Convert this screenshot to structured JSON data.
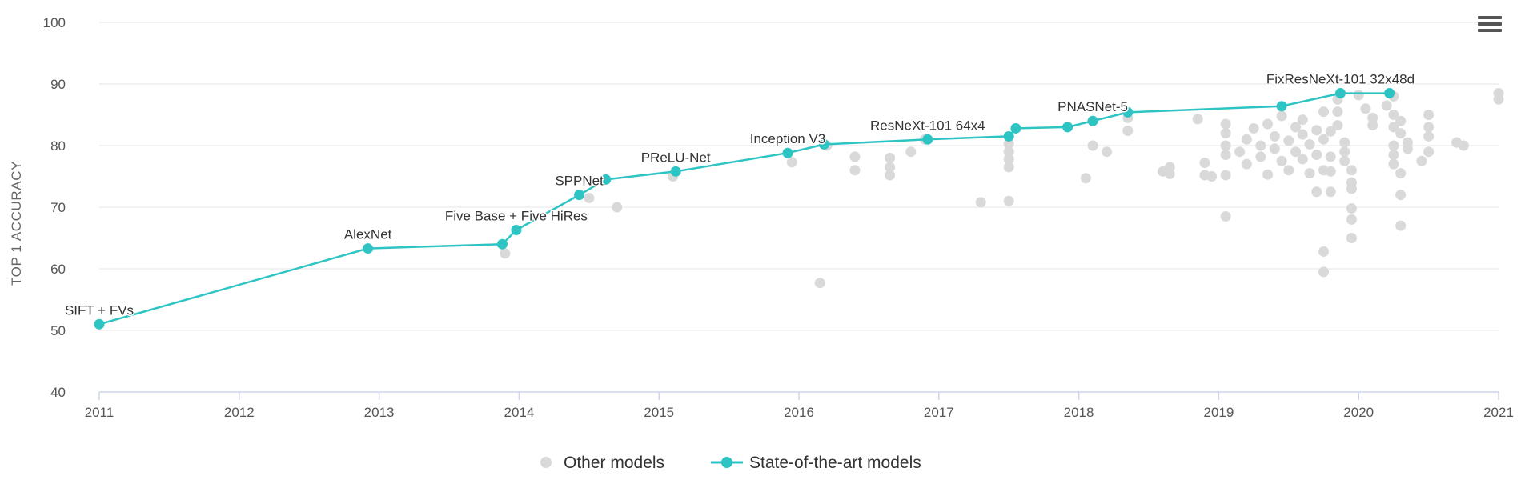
{
  "colors": {
    "sota": "#2ec4c4",
    "other": "#d9d9d9",
    "grid": "#e6e6e6",
    "axis": "#ccd6eb",
    "menu": "#555555"
  },
  "menu": {
    "icon": "hamburger-menu-icon"
  },
  "chart_data": {
    "type": "scatter",
    "ylabel": "TOP 1 ACCURACY",
    "xlabel": "",
    "xlim": [
      2011,
      2021
    ],
    "ylim": [
      40,
      100
    ],
    "x_ticks": [
      "2011",
      "2012",
      "2013",
      "2014",
      "2015",
      "2016",
      "2017",
      "2018",
      "2019",
      "2020",
      "2021"
    ],
    "y_ticks": [
      "40",
      "50",
      "60",
      "70",
      "80",
      "90",
      "100"
    ],
    "grid": true,
    "legend_position": "bottom-center",
    "series": [
      {
        "name": "Other models",
        "kind": "scatter",
        "points": [
          [
            2013.9,
            62.5
          ],
          [
            2014.5,
            71.5
          ],
          [
            2014.7,
            70.0
          ],
          [
            2015.1,
            75.0
          ],
          [
            2015.95,
            77.3
          ],
          [
            2016.15,
            57.7
          ],
          [
            2016.2,
            80.0
          ],
          [
            2016.4,
            78.2
          ],
          [
            2016.4,
            76.0
          ],
          [
            2016.65,
            78.0
          ],
          [
            2016.65,
            76.5
          ],
          [
            2016.65,
            75.2
          ],
          [
            2016.8,
            79.0
          ],
          [
            2016.9,
            81.0
          ],
          [
            2017.3,
            70.8
          ],
          [
            2017.5,
            71.0
          ],
          [
            2017.5,
            76.5
          ],
          [
            2017.5,
            77.8
          ],
          [
            2017.5,
            79.0
          ],
          [
            2017.5,
            80.3
          ],
          [
            2018.05,
            74.7
          ],
          [
            2018.1,
            80.0
          ],
          [
            2018.2,
            79.0
          ],
          [
            2018.35,
            82.4
          ],
          [
            2018.35,
            84.5
          ],
          [
            2018.6,
            75.8
          ],
          [
            2018.65,
            76.5
          ],
          [
            2018.65,
            75.4
          ],
          [
            2018.85,
            84.3
          ],
          [
            2018.9,
            77.2
          ],
          [
            2018.9,
            75.2
          ],
          [
            2018.95,
            75.0
          ],
          [
            2019.05,
            68.5
          ],
          [
            2019.05,
            75.2
          ],
          [
            2019.05,
            78.5
          ],
          [
            2019.05,
            80.0
          ],
          [
            2019.05,
            82.0
          ],
          [
            2019.05,
            83.5
          ],
          [
            2019.15,
            79.0
          ],
          [
            2019.2,
            81.0
          ],
          [
            2019.2,
            77.0
          ],
          [
            2019.25,
            82.8
          ],
          [
            2019.3,
            80.0
          ],
          [
            2019.3,
            78.2
          ],
          [
            2019.35,
            75.3
          ],
          [
            2019.35,
            83.5
          ],
          [
            2019.4,
            81.5
          ],
          [
            2019.4,
            79.5
          ],
          [
            2019.45,
            84.8
          ],
          [
            2019.45,
            77.5
          ],
          [
            2019.5,
            80.8
          ],
          [
            2019.5,
            76.0
          ],
          [
            2019.55,
            83.0
          ],
          [
            2019.55,
            79.0
          ],
          [
            2019.6,
            84.2
          ],
          [
            2019.6,
            81.8
          ],
          [
            2019.6,
            77.8
          ],
          [
            2019.65,
            80.2
          ],
          [
            2019.65,
            75.5
          ],
          [
            2019.7,
            82.5
          ],
          [
            2019.7,
            78.5
          ],
          [
            2019.7,
            72.5
          ],
          [
            2019.75,
            81.0
          ],
          [
            2019.75,
            76.0
          ],
          [
            2019.8,
            82.3
          ],
          [
            2019.8,
            78.2
          ],
          [
            2019.8,
            75.8
          ],
          [
            2019.75,
            62.8
          ],
          [
            2019.75,
            59.5
          ],
          [
            2019.75,
            85.5
          ],
          [
            2019.8,
            72.5
          ],
          [
            2019.85,
            87.5
          ],
          [
            2019.85,
            85.5
          ],
          [
            2019.85,
            83.3
          ],
          [
            2019.9,
            80.5
          ],
          [
            2019.9,
            79.0
          ],
          [
            2019.9,
            77.5
          ],
          [
            2019.95,
            76.0
          ],
          [
            2019.95,
            74.0
          ],
          [
            2019.95,
            73.0
          ],
          [
            2019.95,
            69.8
          ],
          [
            2019.95,
            68.0
          ],
          [
            2019.95,
            65.0
          ],
          [
            2020.0,
            88.2
          ],
          [
            2020.05,
            86.0
          ],
          [
            2020.1,
            84.5
          ],
          [
            2020.1,
            83.3
          ],
          [
            2020.2,
            86.5
          ],
          [
            2020.25,
            88.0
          ],
          [
            2020.25,
            85.0
          ],
          [
            2020.25,
            83.0
          ],
          [
            2020.25,
            80.0
          ],
          [
            2020.25,
            78.5
          ],
          [
            2020.25,
            77.0
          ],
          [
            2020.3,
            75.5
          ],
          [
            2020.3,
            72.0
          ],
          [
            2020.3,
            67.0
          ],
          [
            2020.3,
            84.0
          ],
          [
            2020.3,
            82.0
          ],
          [
            2020.35,
            80.5
          ],
          [
            2020.35,
            79.5
          ],
          [
            2020.45,
            77.5
          ],
          [
            2020.5,
            85.0
          ],
          [
            2020.5,
            83.0
          ],
          [
            2020.5,
            81.5
          ],
          [
            2020.5,
            79.0
          ],
          [
            2020.7,
            80.5
          ],
          [
            2020.75,
            80.0
          ],
          [
            2021.0,
            88.5
          ],
          [
            2021.0,
            87.5
          ]
        ]
      },
      {
        "name": "State-of-the-art models",
        "kind": "line",
        "points": [
          [
            2011.0,
            51.0
          ],
          [
            2012.92,
            63.3
          ],
          [
            2013.88,
            64.0
          ],
          [
            2013.98,
            66.3
          ],
          [
            2014.43,
            72.0
          ],
          [
            2014.62,
            74.5
          ],
          [
            2015.12,
            75.8
          ],
          [
            2015.92,
            78.8
          ],
          [
            2016.18,
            80.2
          ],
          [
            2016.92,
            81.0
          ],
          [
            2017.5,
            81.5
          ],
          [
            2017.55,
            82.8
          ],
          [
            2017.92,
            83.0
          ],
          [
            2018.1,
            84.0
          ],
          [
            2018.35,
            85.4
          ],
          [
            2019.45,
            86.4
          ],
          [
            2019.87,
            88.5
          ],
          [
            2020.22,
            88.5
          ]
        ],
        "labels": [
          {
            "text": "SIFT + FVs",
            "at": 0
          },
          {
            "text": "AlexNet",
            "at": 1
          },
          {
            "text": "Five Base + Five HiRes",
            "at": 3
          },
          {
            "text": "SPPNet",
            "at": 4
          },
          {
            "text": "PReLU-Net",
            "at": 6
          },
          {
            "text": "Inception V3",
            "at": 7
          },
          {
            "text": "ResNeXt-101 64x4",
            "at": 9
          },
          {
            "text": "PNASNet-5",
            "at": 13
          },
          {
            "text": "FixResNeXt-101 32x48d",
            "at": 16
          }
        ]
      }
    ]
  }
}
